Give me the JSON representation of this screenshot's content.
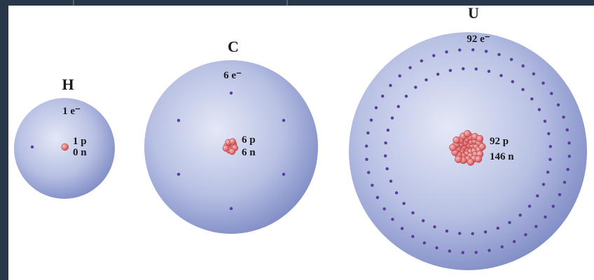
{
  "atoms": [
    {
      "symbol": "H",
      "electrons": "1 e⁻",
      "protons": "1 p",
      "neutrons": "0 n"
    },
    {
      "symbol": "C",
      "electrons": "6 e⁻",
      "protons": "6 p",
      "neutrons": "6 n"
    },
    {
      "symbol": "U",
      "electrons": "92 e⁻",
      "protons": "92 p",
      "neutrons": "146 n"
    }
  ]
}
